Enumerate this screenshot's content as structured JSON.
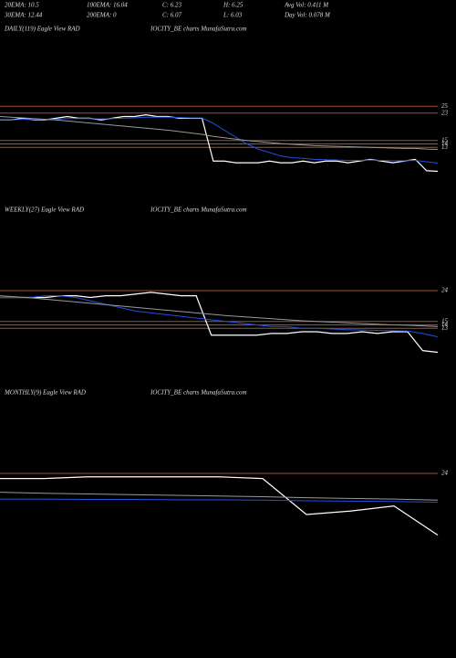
{
  "header": {
    "lines": [
      [
        "20EMA: 10.5",
        "100EMA: 16.04",
        "C: 6.23",
        "H: 6.25",
        "Avg Vol: 0.411 M"
      ],
      [
        "30EMA: 12.44",
        "200EMA: 0",
        "C: 6.07",
        "L: 6.03",
        "Day Vol: 0.078 M"
      ]
    ]
  },
  "chart_data": [
    {
      "type": "line",
      "title": "DAILY(119) Eagle  View  RAD",
      "subtitle": "IOCITY_BE charts MunafaSutra.com",
      "ylim": [
        0,
        40
      ],
      "yticks": [
        25,
        23,
        15,
        14,
        13
      ],
      "grid_color": "#a0522d",
      "series": [
        {
          "color": "#ffffff",
          "values": [
            21,
            21,
            21.5,
            21,
            21,
            21.5,
            22,
            21.5,
            21.5,
            21,
            21.5,
            22,
            22,
            22.5,
            22,
            22,
            21.5,
            21.5,
            21.5,
            9,
            9,
            8.5,
            8.5,
            8.5,
            9,
            8.5,
            8.5,
            9,
            8.5,
            9,
            9,
            8.5,
            9,
            9.5,
            9,
            8.5,
            9,
            9.5,
            6.2,
            6
          ]
        },
        {
          "color": "#2050e0",
          "values": [
            21,
            21,
            21.2,
            21.1,
            21.1,
            21.2,
            21.4,
            21.4,
            21.4,
            21.3,
            21.4,
            21.5,
            21.6,
            21.8,
            21.8,
            21.8,
            21.7,
            21.6,
            21.6,
            20,
            18,
            16,
            14,
            12.5,
            11.5,
            10.5,
            10,
            9.8,
            9.5,
            9.4,
            9.3,
            9.2,
            9.2,
            9.3,
            9.2,
            9.1,
            9.1,
            9.2,
            8.8,
            8.4
          ]
        },
        {
          "color": "#999999",
          "values": [
            22,
            21.8,
            21.6,
            21.4,
            21.2,
            21,
            20.7,
            20.4,
            20.1,
            19.8,
            19.5,
            19.2,
            18.9,
            18.6,
            18.3,
            18,
            17.6,
            17.2,
            16.8,
            16.2,
            15.8,
            15.4,
            15,
            14.7,
            14.4,
            14.1,
            13.9,
            13.7,
            13.5,
            13.4,
            13.3,
            13.2,
            13.1,
            13,
            12.9,
            12.8,
            12.7,
            12.7,
            12.5,
            12.4
          ]
        }
      ]
    },
    {
      "type": "line",
      "title": "WEEKLY(27) Eagle  View  RAD",
      "subtitle": "IOCITY_BE charts MunafaSutra.com",
      "ylim": [
        0,
        40
      ],
      "yticks": [
        24,
        15,
        14,
        13
      ],
      "grid_color": "#a0522d",
      "series": [
        {
          "color": "#ffffff",
          "values": [
            22,
            22,
            22,
            22,
            22.5,
            22.5,
            22,
            22.5,
            22.5,
            23,
            23.5,
            23,
            22.5,
            22.5,
            11,
            11,
            11,
            11,
            11.5,
            11.5,
            12,
            12,
            11.5,
            11.5,
            12,
            11.5,
            12,
            12,
            6.5,
            6
          ]
        },
        {
          "color": "#2050e0",
          "values": [
            22,
            22,
            22,
            22.5,
            22.5,
            22,
            21,
            20,
            19,
            18,
            17.5,
            17,
            16.5,
            16,
            15.5,
            15,
            14.5,
            14,
            13.5,
            13.5,
            13,
            13,
            12.8,
            12.6,
            12.5,
            12.4,
            12.3,
            12.2,
            11.5,
            10.5
          ]
        },
        {
          "color": "#999999",
          "values": [
            22.5,
            22.2,
            21.9,
            21.5,
            21.1,
            20.7,
            20.3,
            19.9,
            19.5,
            19.1,
            18.7,
            18.3,
            17.9,
            17.5,
            17.1,
            16.7,
            16.4,
            16.1,
            15.8,
            15.5,
            15.2,
            15,
            14.8,
            14.6,
            14.4,
            14.2,
            14,
            13.9,
            13.7,
            13.5
          ]
        }
      ]
    },
    {
      "type": "line",
      "title": "MONTHLY(9) Eagle  View  RAD",
      "subtitle": "IOCITY_BE charts MunafaSutra.com",
      "ylim": [
        0,
        40
      ],
      "yticks": [
        24
      ],
      "grid_color": "#a0522d",
      "series": [
        {
          "color": "#ffffff",
          "values": [
            22.5,
            22.5,
            23,
            23,
            23,
            23,
            22.5,
            12,
            13,
            14.5,
            6
          ]
        },
        {
          "color": "#2050e0",
          "values": [
            16.5,
            16.5,
            16.4,
            16.4,
            16.3,
            16.3,
            16.2,
            16,
            15.9,
            15.8,
            15.6
          ]
        },
        {
          "color": "#999999",
          "values": [
            18.5,
            18.2,
            18,
            17.8,
            17.6,
            17.4,
            17.2,
            16.9,
            16.7,
            16.5,
            16.2
          ]
        }
      ]
    }
  ]
}
